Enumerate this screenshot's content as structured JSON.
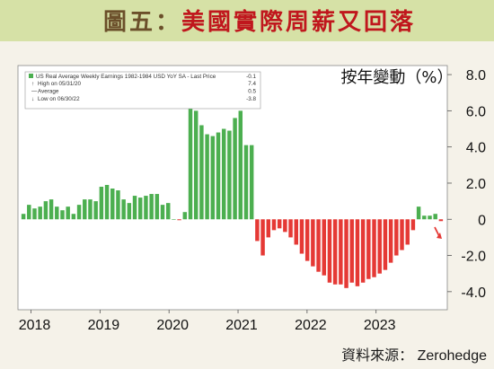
{
  "figure": {
    "title_prefix": "圖五",
    "title_colon": "：",
    "title_main": "美國實際周薪又回落",
    "source": "資料來源： Zerohedge"
  },
  "chart_data": {
    "type": "bar",
    "ylabel": "按年變動（%）",
    "ylim": [
      -5,
      8.5
    ],
    "yticks": [
      -4,
      -2,
      0,
      2,
      4,
      6,
      8
    ],
    "ytick_labels": [
      "-4.0",
      "-2.0",
      "0",
      "2.0",
      "4.0",
      "6.0",
      "8.0"
    ],
    "xtick_labels": [
      "2018",
      "2019",
      "2020",
      "2021",
      "2022",
      "2023"
    ],
    "x_start_year": 2017.85,
    "x_end_year": 2023.98,
    "positive_color": "#4caf50",
    "negative_color": "#e53935",
    "grid": false,
    "legend": {
      "position": "top-left",
      "title": "US Real Average Weekly Earnings 1982-1984 USD YoY SA - Last Price",
      "title_value": "-0.1",
      "entries": [
        {
          "label": "High on 05/31/20",
          "value": "7.4"
        },
        {
          "label": "Average",
          "value": "0.5"
        },
        {
          "label": "Low on 06/30/22",
          "value": "-3.8"
        }
      ]
    },
    "series": [
      {
        "values": [
          0.3,
          0.8,
          0.6,
          0.7,
          1.0,
          1.1,
          0.7,
          0.5,
          0.7,
          0.3,
          0.8,
          1.1,
          1.1,
          1.0,
          1.8,
          1.9,
          1.7,
          1.6,
          1.1,
          0.9,
          1.3,
          1.2,
          1.3,
          1.4,
          1.4,
          0.8,
          0.9,
          0.0,
          -0.05,
          0.4,
          7.4,
          6.0,
          5.2,
          4.7,
          4.6,
          4.8,
          5.0,
          4.9,
          5.6,
          6.0,
          4.1,
          4.1,
          -1.2,
          -2.0,
          -1.0,
          -0.6,
          -0.5,
          -0.7,
          -1.0,
          -1.4,
          -1.9,
          -2.3,
          -2.6,
          -2.9,
          -3.1,
          -3.5,
          -3.6,
          -3.6,
          -3.8,
          -3.5,
          -3.7,
          -3.5,
          -3.3,
          -3.2,
          -3.0,
          -2.8,
          -2.4,
          -2.0,
          -1.7,
          -1.4,
          -0.6,
          0.7,
          0.2,
          0.2,
          0.3,
          -0.1
        ]
      }
    ]
  }
}
